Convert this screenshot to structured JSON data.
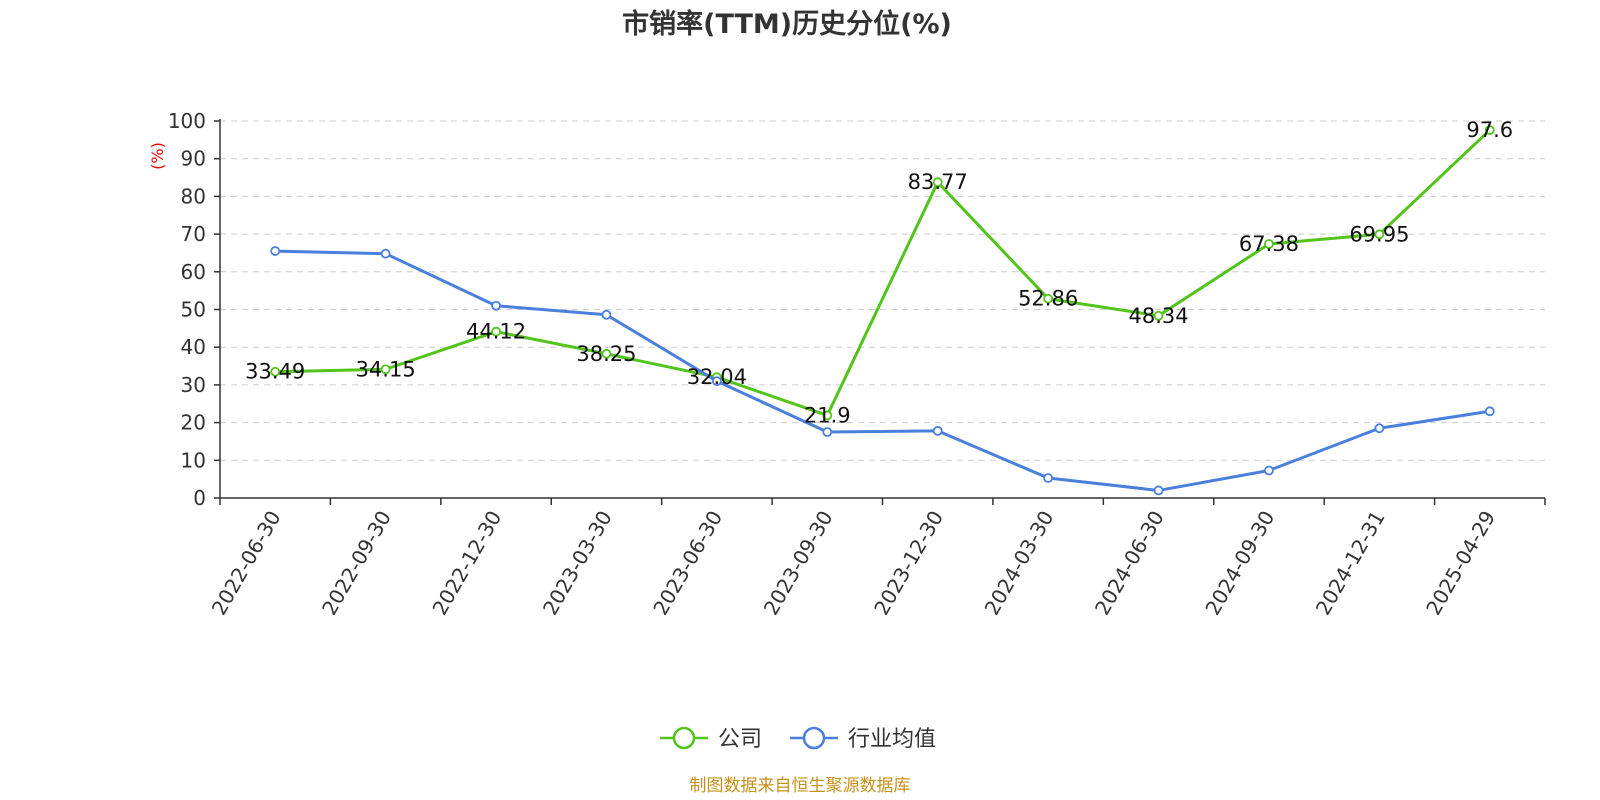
{
  "colors": {
    "company": "#52c41a",
    "industry": "#4a7fdc",
    "ylabel": "#e00000",
    "source": "#c8901a",
    "grid": "#cccccc",
    "axis": "#333333"
  },
  "source": "制图数据来自恒生聚源数据库",
  "chart_data": {
    "type": "line",
    "title": "市销率(TTM)历史分位(%)",
    "ylabel": "(%)",
    "xlabel": "",
    "ylim": [
      0,
      100
    ],
    "yticks": [
      "0",
      "10",
      "20",
      "30",
      "40",
      "50",
      "60",
      "70",
      "80",
      "90",
      "100"
    ],
    "grid": true,
    "legend": "bottom-center",
    "categories": [
      "2022-06-30",
      "2022-09-30",
      "2022-12-30",
      "2023-03-30",
      "2023-06-30",
      "2023-09-30",
      "2023-12-30",
      "2024-03-30",
      "2024-06-30",
      "2024-09-30",
      "2024-12-31",
      "2025-04-29"
    ],
    "series": [
      {
        "name": "公司",
        "values": [
          33.49,
          34.15,
          44.12,
          38.25,
          32.04,
          21.9,
          83.77,
          52.86,
          48.34,
          67.38,
          69.95,
          97.6
        ],
        "labels": [
          "33.49",
          "34.15",
          "44.12",
          "38.25",
          "32.04",
          "21.9",
          "83.77",
          "52.86",
          "48.34",
          "67.38",
          "69.95",
          "97.6"
        ]
      },
      {
        "name": "行业均值",
        "values": [
          65.5,
          64.8,
          51.0,
          48.6,
          31.0,
          17.5,
          17.8,
          5.3,
          2.0,
          7.3,
          18.5,
          23.0
        ]
      }
    ]
  }
}
